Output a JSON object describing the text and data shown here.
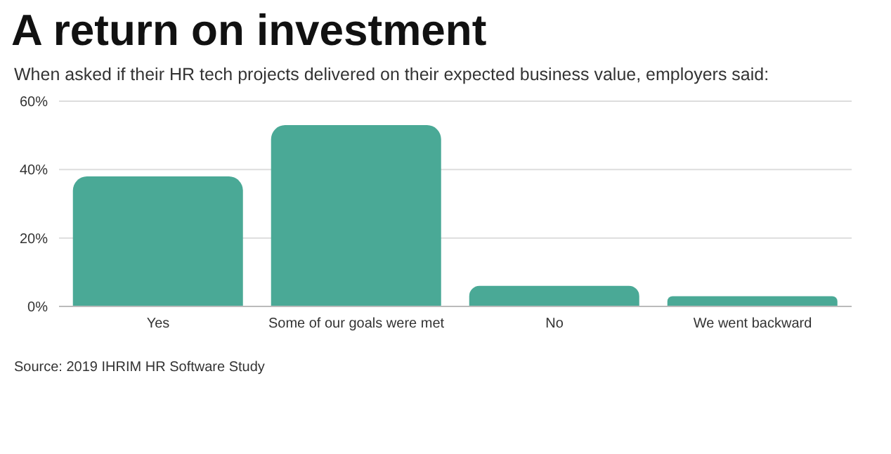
{
  "chart_data": {
    "type": "bar",
    "title": "A return on investment",
    "subtitle": "When asked if their HR tech projects delivered on their expected business value, employers said:",
    "categories": [
      "Yes",
      "Some of our goals were met",
      "No",
      "We went backward"
    ],
    "values": [
      38,
      53,
      6,
      3
    ],
    "color": "#4aa996",
    "ylim": [
      0,
      60
    ],
    "yticks": [
      {
        "value": 0,
        "label": "0%"
      },
      {
        "value": 20,
        "label": "20%"
      },
      {
        "value": 40,
        "label": "40%"
      },
      {
        "value": 60,
        "label": "60%"
      }
    ],
    "grid": "y",
    "annotations": [
      "Source: 2019 IHRIM HR Software Study"
    ]
  }
}
